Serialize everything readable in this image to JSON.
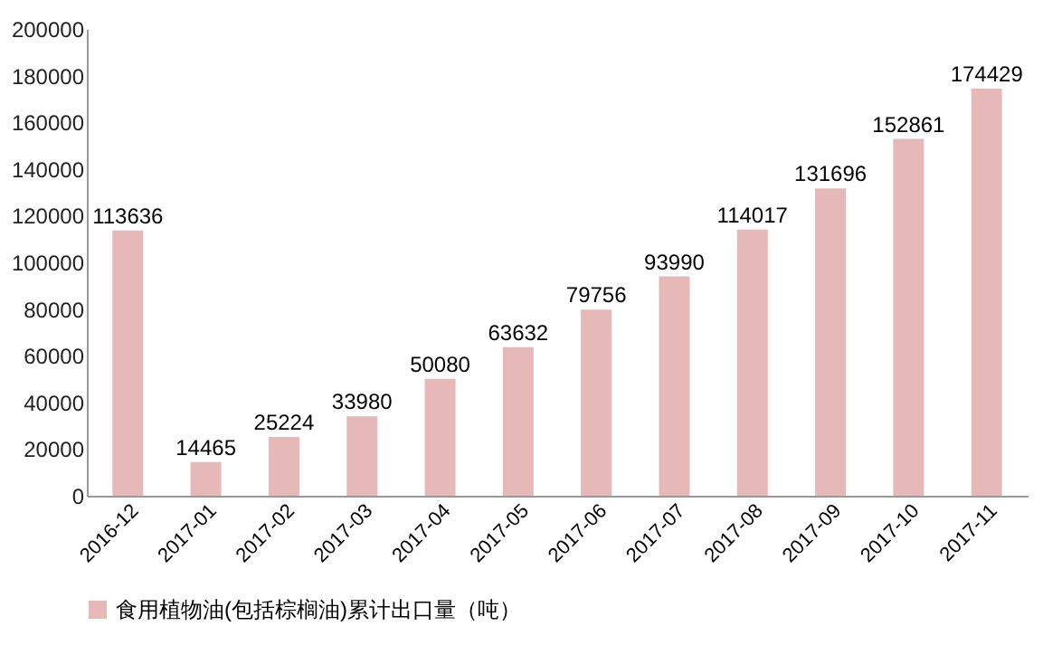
{
  "chart_data": {
    "type": "bar",
    "categories": [
      "2016-12",
      "2017-01",
      "2017-02",
      "2017-03",
      "2017-04",
      "2017-05",
      "2017-06",
      "2017-07",
      "2017-08",
      "2017-09",
      "2017-10",
      "2017-11"
    ],
    "series": [
      {
        "name": "食用植物油(包括棕榈油)累计出口量（吨）",
        "color": "#e6b9b8",
        "values": [
          113636,
          14465,
          25224,
          33980,
          50080,
          63632,
          79756,
          93990,
          114017,
          131696,
          152861,
          174429
        ]
      }
    ],
    "ylim": [
      0,
      200000
    ],
    "yticks": [
      0,
      20000,
      40000,
      60000,
      80000,
      100000,
      120000,
      140000,
      160000,
      180000,
      200000
    ],
    "data_labels": true,
    "legend": "bottom",
    "grid": false
  }
}
